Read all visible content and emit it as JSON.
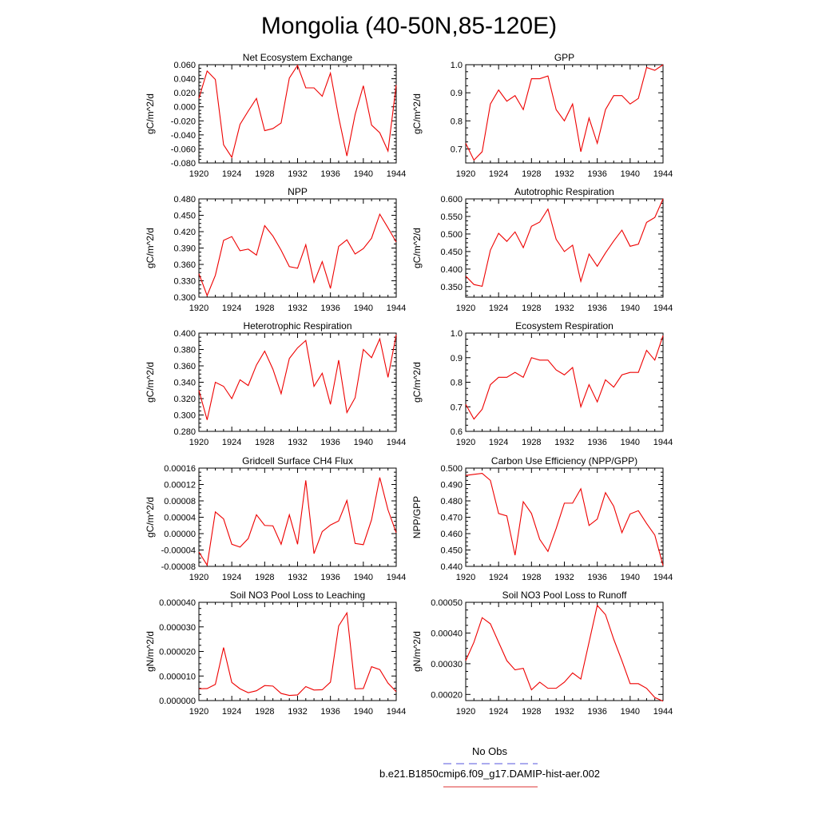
{
  "title": "Mongolia (40-50N,85-120E)",
  "legend": {
    "entries": [
      {
        "label": "No Obs",
        "color": "#5555dd",
        "style": "dashed"
      },
      {
        "label": "b.e21.B1850cmip6.f09_g17.DAMIP-hist-aer.002",
        "color": "#dd3333",
        "style": "solid"
      }
    ]
  },
  "line_color": "#ee0000",
  "chart_data": [
    {
      "type": "line",
      "title": "Net Ecosystem Exchange",
      "ylabel": "gC/m^2/d",
      "xlim": [
        1920,
        1944
      ],
      "ylim": [
        -0.08,
        0.06
      ],
      "xticks": [
        "1920",
        "1924",
        "1928",
        "1932",
        "1936",
        "1940",
        "1944"
      ],
      "yticks": [
        "-0.080",
        "-0.060",
        "-0.040",
        "-0.020",
        "0.000",
        "0.020",
        "0.040",
        "0.060"
      ],
      "x": [
        1920,
        1921,
        1922,
        1923,
        1924,
        1925,
        1926,
        1927,
        1928,
        1929,
        1930,
        1931,
        1932,
        1933,
        1934,
        1935,
        1936,
        1937,
        1938,
        1939,
        1940,
        1941,
        1942,
        1943,
        1944
      ],
      "series": [
        {
          "values": [
            0.012,
            0.051,
            0.039,
            -0.054,
            -0.072,
            -0.025,
            -0.006,
            0.012,
            -0.034,
            -0.031,
            -0.023,
            0.041,
            0.059,
            0.027,
            0.027,
            0.015,
            0.048,
            -0.015,
            -0.07,
            -0.011,
            0.03,
            -0.026,
            -0.037,
            -0.063,
            0.031
          ]
        }
      ]
    },
    {
      "type": "line",
      "title": "GPP",
      "ylabel": "gC/m^2/d",
      "xlim": [
        1920,
        1944
      ],
      "ylim": [
        0.65,
        1.0
      ],
      "xticks": [
        "1920",
        "1924",
        "1928",
        "1932",
        "1936",
        "1940",
        "1944"
      ],
      "yticks": [
        "0.7",
        "0.8",
        "0.9",
        "1.0"
      ],
      "x": [
        1920,
        1921,
        1922,
        1923,
        1924,
        1925,
        1926,
        1927,
        1928,
        1929,
        1930,
        1931,
        1932,
        1933,
        1934,
        1935,
        1936,
        1937,
        1938,
        1939,
        1940,
        1941,
        1942,
        1943,
        1944
      ],
      "series": [
        {
          "values": [
            0.72,
            0.66,
            0.69,
            0.86,
            0.91,
            0.87,
            0.89,
            0.84,
            0.95,
            0.95,
            0.96,
            0.84,
            0.8,
            0.86,
            0.69,
            0.81,
            0.72,
            0.84,
            0.89,
            0.89,
            0.86,
            0.88,
            0.99,
            0.98,
            1.0
          ]
        }
      ]
    },
    {
      "type": "line",
      "title": "NPP",
      "ylabel": "gC/m^2/d",
      "xlim": [
        1920,
        1944
      ],
      "ylim": [
        0.3,
        0.48
      ],
      "xticks": [
        "1920",
        "1924",
        "1928",
        "1932",
        "1936",
        "1940",
        "1944"
      ],
      "yticks": [
        "0.300",
        "0.330",
        "0.360",
        "0.390",
        "0.420",
        "0.450",
        "0.480"
      ],
      "x": [
        1920,
        1921,
        1922,
        1923,
        1924,
        1925,
        1926,
        1927,
        1928,
        1929,
        1930,
        1931,
        1932,
        1933,
        1934,
        1935,
        1936,
        1937,
        1938,
        1939,
        1940,
        1941,
        1942,
        1943,
        1944
      ],
      "series": [
        {
          "values": [
            0.343,
            0.303,
            0.34,
            0.404,
            0.411,
            0.385,
            0.388,
            0.377,
            0.431,
            0.412,
            0.386,
            0.356,
            0.353,
            0.396,
            0.327,
            0.365,
            0.316,
            0.393,
            0.405,
            0.379,
            0.389,
            0.408,
            0.452,
            0.427,
            0.401
          ]
        }
      ]
    },
    {
      "type": "line",
      "title": "Autotrophic Respiration",
      "ylabel": "gC/m^2/d",
      "xlim": [
        1920,
        1944
      ],
      "ylim": [
        0.32,
        0.6
      ],
      "xticks": [
        "1920",
        "1924",
        "1928",
        "1932",
        "1936",
        "1940",
        "1944"
      ],
      "yticks": [
        "0.350",
        "0.400",
        "0.450",
        "0.500",
        "0.550",
        "0.600"
      ],
      "x": [
        1920,
        1921,
        1922,
        1923,
        1924,
        1925,
        1926,
        1927,
        1928,
        1929,
        1930,
        1931,
        1932,
        1933,
        1934,
        1935,
        1936,
        1937,
        1938,
        1939,
        1940,
        1941,
        1942,
        1943,
        1944
      ],
      "series": [
        {
          "values": [
            0.38,
            0.356,
            0.351,
            0.454,
            0.502,
            0.479,
            0.506,
            0.461,
            0.522,
            0.534,
            0.571,
            0.485,
            0.45,
            0.468,
            0.365,
            0.443,
            0.408,
            0.446,
            0.48,
            0.511,
            0.465,
            0.471,
            0.533,
            0.547,
            0.6
          ]
        }
      ]
    },
    {
      "type": "line",
      "title": "Heterotrophic Respiration",
      "ylabel": "gC/m^2/d",
      "xlim": [
        1920,
        1944
      ],
      "ylim": [
        0.28,
        0.4
      ],
      "xticks": [
        "1920",
        "1924",
        "1928",
        "1932",
        "1936",
        "1940",
        "1944"
      ],
      "yticks": [
        "0.280",
        "0.300",
        "0.320",
        "0.340",
        "0.360",
        "0.380",
        "0.400"
      ],
      "x": [
        1920,
        1921,
        1922,
        1923,
        1924,
        1925,
        1926,
        1927,
        1928,
        1929,
        1930,
        1931,
        1932,
        1933,
        1934,
        1935,
        1936,
        1937,
        1938,
        1939,
        1940,
        1941,
        1942,
        1943,
        1944
      ],
      "series": [
        {
          "values": [
            0.33,
            0.294,
            0.34,
            0.335,
            0.32,
            0.343,
            0.336,
            0.361,
            0.378,
            0.356,
            0.326,
            0.369,
            0.382,
            0.391,
            0.335,
            0.351,
            0.313,
            0.367,
            0.303,
            0.321,
            0.38,
            0.37,
            0.393,
            0.346,
            0.398
          ]
        }
      ]
    },
    {
      "type": "line",
      "title": "Ecosystem Respiration",
      "ylabel": "gC/m^2/d",
      "xlim": [
        1920,
        1944
      ],
      "ylim": [
        0.6,
        1.0
      ],
      "xticks": [
        "1920",
        "1924",
        "1928",
        "1932",
        "1936",
        "1940",
        "1944"
      ],
      "yticks": [
        "0.6",
        "0.7",
        "0.8",
        "0.9",
        "1.0"
      ],
      "x": [
        1920,
        1921,
        1922,
        1923,
        1924,
        1925,
        1926,
        1927,
        1928,
        1929,
        1930,
        1931,
        1932,
        1933,
        1934,
        1935,
        1936,
        1937,
        1938,
        1939,
        1940,
        1941,
        1942,
        1943,
        1944
      ],
      "series": [
        {
          "values": [
            0.71,
            0.65,
            0.69,
            0.79,
            0.82,
            0.82,
            0.84,
            0.82,
            0.9,
            0.89,
            0.89,
            0.85,
            0.83,
            0.86,
            0.7,
            0.79,
            0.72,
            0.81,
            0.78,
            0.83,
            0.84,
            0.84,
            0.93,
            0.89,
            0.99
          ]
        }
      ]
    },
    {
      "type": "line",
      "title": "Gridcell Surface CH4 Flux",
      "ylabel": "gC/m^2/d",
      "xlim": [
        1920,
        1944
      ],
      "ylim": [
        -8e-05,
        0.00016
      ],
      "xticks": [
        "1920",
        "1924",
        "1928",
        "1932",
        "1936",
        "1940",
        "1944"
      ],
      "yticks": [
        "-0.00008",
        "-0.00004",
        "0.00000",
        "0.00004",
        "0.00008",
        "0.00012",
        "0.00016"
      ],
      "x": [
        1920,
        1921,
        1922,
        1923,
        1924,
        1925,
        1926,
        1927,
        1928,
        1929,
        1930,
        1931,
        1932,
        1933,
        1934,
        1935,
        1936,
        1937,
        1938,
        1939,
        1940,
        1941,
        1942,
        1943,
        1944
      ],
      "series": [
        {
          "values": [
            -4.5e-05,
            -7.7e-05,
            5.3e-05,
            3.6e-05,
            -2.6e-05,
            -3.3e-05,
            -1.2e-05,
            4.6e-05,
            2e-05,
            1.9e-05,
            -2.6e-05,
            4.6e-05,
            -2.6e-05,
            0.00013,
            -4.9e-05,
            5e-06,
            2.1e-05,
            3.1e-05,
            8.1e-05,
            -2.4e-05,
            -2.7e-05,
            3.4e-05,
            0.000137,
            5.8e-05,
            2e-06
          ]
        }
      ]
    },
    {
      "type": "line",
      "title": "Carbon Use Efficiency (NPP/GPP)",
      "ylabel": "NPP/GPP",
      "xlim": [
        1920,
        1944
      ],
      "ylim": [
        0.44,
        0.5
      ],
      "xticks": [
        "1920",
        "1924",
        "1928",
        "1932",
        "1936",
        "1940",
        "1944"
      ],
      "yticks": [
        "0.440",
        "0.450",
        "0.460",
        "0.470",
        "0.480",
        "0.490",
        "0.500"
      ],
      "x": [
        1920,
        1921,
        1922,
        1923,
        1924,
        1925,
        1926,
        1927,
        1928,
        1929,
        1930,
        1931,
        1932,
        1933,
        1934,
        1935,
        1936,
        1937,
        1938,
        1939,
        1940,
        1941,
        1942,
        1943,
        1944
      ],
      "series": [
        {
          "values": [
            0.4955,
            0.4962,
            0.4968,
            0.4925,
            0.4723,
            0.4708,
            0.4468,
            0.4795,
            0.4723,
            0.4565,
            0.4491,
            0.4631,
            0.4786,
            0.4786,
            0.4874,
            0.465,
            0.4689,
            0.485,
            0.4767,
            0.4606,
            0.472,
            0.474,
            0.4662,
            0.4591,
            0.4405
          ]
        }
      ]
    },
    {
      "type": "line",
      "title": "Soil NO3 Pool Loss to Leaching",
      "ylabel": "gN/m^2/d",
      "xlim": [
        1920,
        1944
      ],
      "ylim": [
        0,
        4e-05
      ],
      "xticks": [
        "1920",
        "1924",
        "1928",
        "1932",
        "1936",
        "1940",
        "1944"
      ],
      "yticks": [
        "0.000000",
        "0.000010",
        "0.000020",
        "0.000030",
        "0.000040"
      ],
      "x": [
        1920,
        1921,
        1922,
        1923,
        1924,
        1925,
        1926,
        1927,
        1928,
        1929,
        1930,
        1931,
        1932,
        1933,
        1934,
        1935,
        1936,
        1937,
        1938,
        1939,
        1940,
        1941,
        1942,
        1943,
        1944
      ],
      "series": [
        {
          "values": [
            4.8e-06,
            4.9e-06,
            6.6e-06,
            2.16e-05,
            7.4e-06,
            4.8e-06,
            3.2e-06,
            4e-06,
            6.1e-06,
            5.9e-06,
            2.9e-06,
            2.1e-06,
            2.3e-06,
            5.7e-06,
            4.3e-06,
            4.4e-06,
            7.5e-06,
            3.04e-05,
            3.57e-05,
            4.8e-06,
            4.9e-06,
            1.38e-05,
            1.26e-05,
            7.1e-06,
            3.6e-06
          ]
        }
      ]
    },
    {
      "type": "line",
      "title": "Soil NO3 Pool Loss to Runoff",
      "ylabel": "gN/m^2/d",
      "xlim": [
        1920,
        1944
      ],
      "ylim": [
        0.00018,
        0.0005
      ],
      "xticks": [
        "1920",
        "1924",
        "1928",
        "1932",
        "1936",
        "1940",
        "1944"
      ],
      "yticks": [
        "0.00020",
        "0.00030",
        "0.00040",
        "0.00050"
      ],
      "x": [
        1920,
        1921,
        1922,
        1923,
        1924,
        1925,
        1926,
        1927,
        1928,
        1929,
        1930,
        1931,
        1932,
        1933,
        1934,
        1935,
        1936,
        1937,
        1938,
        1939,
        1940,
        1941,
        1942,
        1943,
        1944
      ],
      "series": [
        {
          "values": [
            0.00031,
            0.00037,
            0.00045,
            0.00043,
            0.00037,
            0.00031,
            0.00028,
            0.000285,
            0.000215,
            0.00024,
            0.00022,
            0.00022,
            0.00024,
            0.00027,
            0.00025,
            0.00037,
            0.00049,
            0.00046,
            0.00038,
            0.00031,
            0.000235,
            0.000235,
            0.00022,
            0.00019,
            0.000178
          ]
        }
      ]
    }
  ]
}
